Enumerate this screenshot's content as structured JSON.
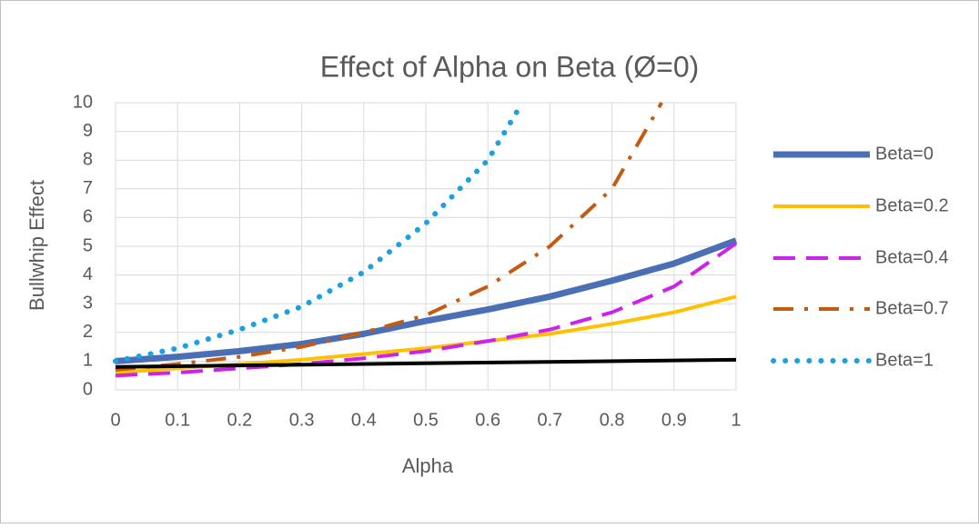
{
  "chart_data": {
    "type": "line",
    "title": "Effect of Alpha on Beta (Ø=0)",
    "x_label": "Alpha",
    "y_label": "Bullwhip Effect",
    "xlim": [
      0,
      1
    ],
    "xticks": [
      0,
      0.1,
      0.2,
      0.3,
      0.4,
      0.5,
      0.6,
      0.7,
      0.8,
      0.9,
      1
    ],
    "ylim": [
      0,
      10
    ],
    "yticks": [
      0,
      1,
      2,
      3,
      4,
      5,
      6,
      7,
      8,
      9,
      10
    ],
    "grid": true,
    "legend": "right",
    "series": [
      {
        "name": "Beta=0",
        "color": "#4a6fb5",
        "dash": "solid",
        "width": 7,
        "x": [
          0,
          0.1,
          0.2,
          0.3,
          0.4,
          0.5,
          0.6,
          0.7,
          0.8,
          0.9,
          1
        ],
        "values": [
          1.0,
          1.15,
          1.35,
          1.6,
          1.95,
          2.4,
          2.8,
          3.25,
          3.8,
          4.4,
          5.2
        ]
      },
      {
        "name": "Beta=0.2",
        "color": "#ffc000",
        "dash": "solid",
        "width": 4,
        "x": [
          0,
          0.1,
          0.2,
          0.3,
          0.4,
          0.5,
          0.6,
          0.7,
          0.8,
          0.9,
          1
        ],
        "values": [
          0.6,
          0.75,
          0.9,
          1.05,
          1.25,
          1.45,
          1.7,
          1.95,
          2.3,
          2.7,
          3.25
        ]
      },
      {
        "name": "Beta=0.4",
        "color": "#cc22ee",
        "dash": "dash",
        "width": 4,
        "x": [
          0,
          0.1,
          0.2,
          0.3,
          0.4,
          0.5,
          0.6,
          0.7,
          0.8,
          0.9,
          1
        ],
        "values": [
          0.5,
          0.6,
          0.75,
          0.9,
          1.1,
          1.35,
          1.7,
          2.1,
          2.7,
          3.6,
          5.1
        ]
      },
      {
        "name": "Beta=0.7",
        "color": "#c55a11",
        "dash": "dashdot",
        "width": 4,
        "x": [
          0,
          0.1,
          0.2,
          0.3,
          0.4,
          0.5,
          0.6,
          0.7,
          0.8,
          0.88
        ],
        "values": [
          0.7,
          0.9,
          1.15,
          1.5,
          2.0,
          2.6,
          3.6,
          5.0,
          7.0,
          10
        ]
      },
      {
        "name": "Beta=1",
        "color": "#1ba1e2",
        "dash": "dot",
        "width": 6,
        "x": [
          0,
          0.1,
          0.2,
          0.3,
          0.4,
          0.5,
          0.6,
          0.65
        ],
        "values": [
          1.0,
          1.45,
          2.1,
          2.9,
          4.1,
          5.8,
          8.0,
          9.8
        ]
      },
      {
        "color": "#000000",
        "dash": "solid",
        "width": 4,
        "x": [
          0,
          1
        ],
        "values": [
          0.8,
          1.05
        ]
      }
    ]
  }
}
